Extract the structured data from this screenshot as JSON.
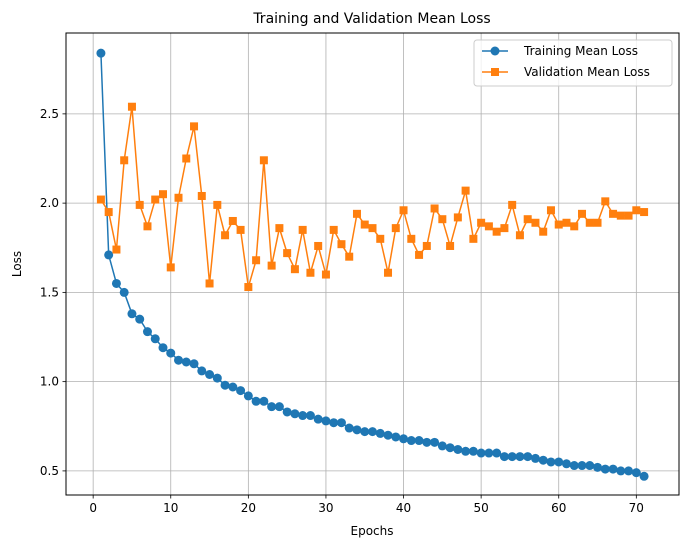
{
  "chart_data": {
    "type": "line",
    "title": "Training and Validation Mean Loss",
    "xlabel": "Epochs",
    "ylabel": "Loss",
    "xlim": [
      -3.5,
      75.5
    ],
    "ylim": [
      0.365,
      2.953
    ],
    "xticks": [
      0,
      10,
      20,
      30,
      40,
      50,
      60,
      70
    ],
    "yticks": [
      0.5,
      1.0,
      1.5,
      2.0,
      2.5
    ],
    "grid": true,
    "legend_position": "top-right",
    "series": [
      {
        "name": "Training Mean Loss",
        "color": "#1f77b4",
        "marker": "circle",
        "x": [
          1,
          2,
          3,
          4,
          5,
          6,
          7,
          8,
          9,
          10,
          11,
          12,
          13,
          14,
          15,
          16,
          17,
          18,
          19,
          20,
          21,
          22,
          23,
          24,
          25,
          26,
          27,
          28,
          29,
          30,
          31,
          32,
          33,
          34,
          35,
          36,
          37,
          38,
          39,
          40,
          41,
          42,
          43,
          44,
          45,
          46,
          47,
          48,
          49,
          50,
          51,
          52,
          53,
          54,
          55,
          56,
          57,
          58,
          59,
          60,
          61,
          62,
          63,
          64,
          65,
          66,
          67,
          68,
          69,
          70,
          71
        ],
        "values": [
          2.84,
          1.71,
          1.55,
          1.5,
          1.38,
          1.35,
          1.28,
          1.24,
          1.19,
          1.16,
          1.12,
          1.11,
          1.1,
          1.06,
          1.04,
          1.02,
          0.98,
          0.97,
          0.95,
          0.92,
          0.89,
          0.89,
          0.86,
          0.86,
          0.83,
          0.82,
          0.81,
          0.81,
          0.79,
          0.78,
          0.77,
          0.77,
          0.74,
          0.73,
          0.72,
          0.72,
          0.71,
          0.7,
          0.69,
          0.68,
          0.67,
          0.67,
          0.66,
          0.66,
          0.64,
          0.63,
          0.62,
          0.61,
          0.61,
          0.6,
          0.6,
          0.6,
          0.58,
          0.58,
          0.58,
          0.58,
          0.57,
          0.56,
          0.55,
          0.55,
          0.54,
          0.53,
          0.53,
          0.53,
          0.52,
          0.51,
          0.51,
          0.5,
          0.5,
          0.49,
          0.47
        ]
      },
      {
        "name": "Validation Mean Loss",
        "color": "#ff7f0e",
        "marker": "square",
        "x": [
          1,
          2,
          3,
          4,
          5,
          6,
          7,
          8,
          9,
          10,
          11,
          12,
          13,
          14,
          15,
          16,
          17,
          18,
          19,
          20,
          21,
          22,
          23,
          24,
          25,
          26,
          27,
          28,
          29,
          30,
          31,
          32,
          33,
          34,
          35,
          36,
          37,
          38,
          39,
          40,
          41,
          42,
          43,
          44,
          45,
          46,
          47,
          48,
          49,
          50,
          51,
          52,
          53,
          54,
          55,
          56,
          57,
          58,
          59,
          60,
          61,
          62,
          63,
          64,
          65,
          66,
          67,
          68,
          69,
          70,
          71
        ],
        "values": [
          2.02,
          1.95,
          1.74,
          2.24,
          2.54,
          1.99,
          1.87,
          2.02,
          2.05,
          1.64,
          2.03,
          2.25,
          2.43,
          2.04,
          1.55,
          1.99,
          1.82,
          1.9,
          1.85,
          1.53,
          1.68,
          2.24,
          1.65,
          1.86,
          1.72,
          1.63,
          1.85,
          1.61,
          1.76,
          1.6,
          1.85,
          1.77,
          1.7,
          1.94,
          1.88,
          1.86,
          1.8,
          1.61,
          1.86,
          1.96,
          1.8,
          1.71,
          1.76,
          1.97,
          1.91,
          1.76,
          1.92,
          2.07,
          1.8,
          1.89,
          1.87,
          1.84,
          1.86,
          1.99,
          1.82,
          1.91,
          1.89,
          1.84,
          1.96,
          1.88,
          1.89,
          1.87,
          1.94,
          1.89,
          1.89,
          2.01,
          1.94,
          1.93,
          1.93,
          1.96,
          1.95
        ]
      }
    ]
  }
}
